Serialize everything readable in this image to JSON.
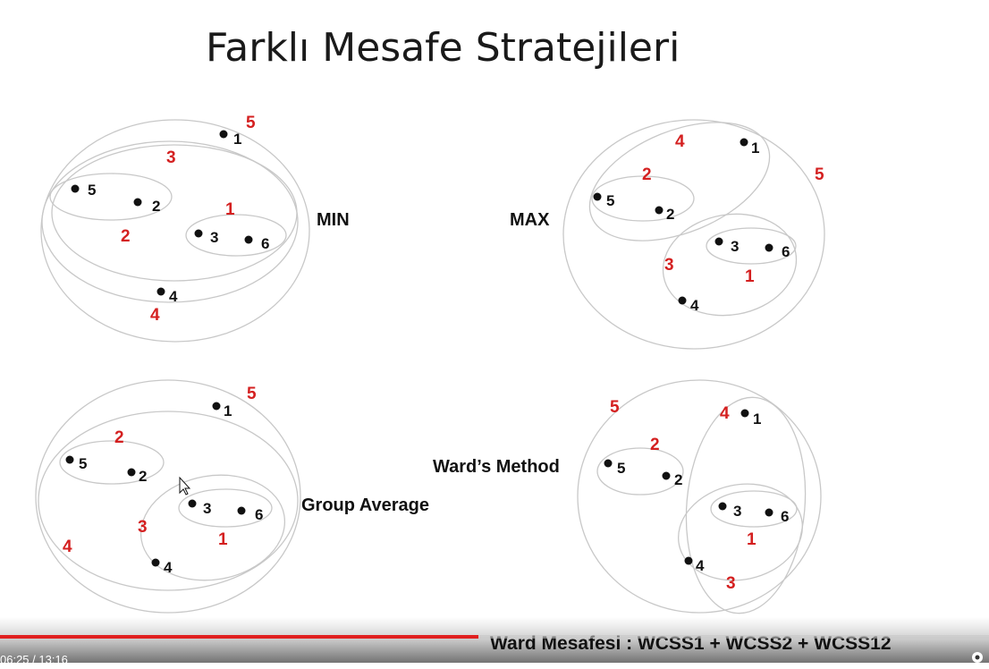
{
  "slide": {
    "title": "Farklı Mesafe Stratejileri",
    "panels": [
      {
        "label": "MIN",
        "points": [
          {
            "id": "1"
          },
          {
            "id": "5"
          },
          {
            "id": "2"
          },
          {
            "id": "3"
          },
          {
            "id": "6"
          },
          {
            "id": "4"
          }
        ],
        "order": [
          "5",
          "3",
          "1",
          "2",
          "4"
        ]
      },
      {
        "label": "MAX",
        "points": [
          {
            "id": "1"
          },
          {
            "id": "5"
          },
          {
            "id": "2"
          },
          {
            "id": "3"
          },
          {
            "id": "6"
          },
          {
            "id": "4"
          }
        ],
        "order": [
          "4",
          "2",
          "5",
          "3",
          "1"
        ]
      },
      {
        "label": "Group Average",
        "points": [
          {
            "id": "1"
          },
          {
            "id": "5"
          },
          {
            "id": "2"
          },
          {
            "id": "3"
          },
          {
            "id": "6"
          },
          {
            "id": "4"
          }
        ],
        "order": [
          "5",
          "2",
          "3",
          "1",
          "4"
        ]
      },
      {
        "label": "Ward’s Method",
        "points": [
          {
            "id": "1"
          },
          {
            "id": "5"
          },
          {
            "id": "2"
          },
          {
            "id": "3"
          },
          {
            "id": "6"
          },
          {
            "id": "4"
          }
        ],
        "order": [
          "5",
          "4",
          "2",
          "1",
          "3"
        ]
      }
    ]
  },
  "player": {
    "caption": "Ward Mesafesi : WCSS1 + WCSS2 + WCSS12",
    "time": "06:25 / 13:16",
    "progress_fraction": 0.4837,
    "accent_color": "#e02020",
    "settings_icon": "gear-icon"
  }
}
